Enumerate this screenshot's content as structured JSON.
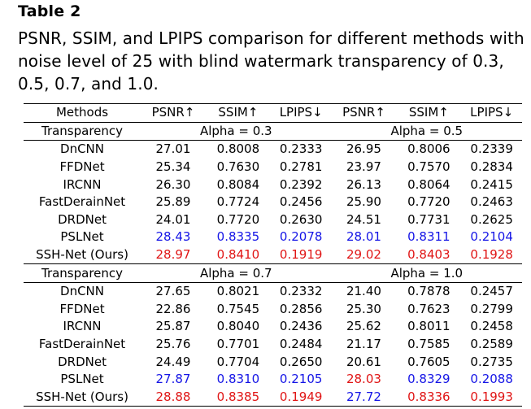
{
  "table_label": "Table 2",
  "caption": "PSNR, SSIM, and LPIPS comparison for different methods with noise level of 25 with blind watermark transparency of 0.3, 0.5, 0.7, and 1.0.",
  "colors": {
    "best": "#e01515",
    "second_best": "#1515e6"
  },
  "columns": [
    "Methods",
    "PSNR↑",
    "SSIM↑",
    "LPIPS↓",
    "PSNR↑",
    "SSIM↑",
    "LPIPS↓"
  ],
  "blocks": [
    {
      "row_label": "Transparency",
      "left_alpha": "Alpha = 0.3",
      "right_alpha": "Alpha = 0.5",
      "rows": [
        {
          "method": "DnCNN",
          "values": [
            "27.01",
            "0.8008",
            "0.2333",
            "26.95",
            "0.8006",
            "0.2339"
          ]
        },
        {
          "method": "FFDNet",
          "values": [
            "25.34",
            "0.7630",
            "0.2781",
            "23.97",
            "0.7570",
            "0.2834"
          ]
        },
        {
          "method": "IRCNN",
          "values": [
            "26.30",
            "0.8084",
            "0.2392",
            "26.13",
            "0.8064",
            "0.2415"
          ]
        },
        {
          "method": "FastDerainNet",
          "values": [
            "25.89",
            "0.7724",
            "0.2456",
            "25.90",
            "0.7720",
            "0.2463"
          ]
        },
        {
          "method": "DRDNet",
          "values": [
            "24.01",
            "0.7720",
            "0.2630",
            "24.51",
            "0.7731",
            "0.2625"
          ]
        },
        {
          "method": "PSLNet",
          "values": [
            "28.43",
            "0.8335",
            "0.2078",
            "28.01",
            "0.8311",
            "0.2104"
          ]
        },
        {
          "method": "SSH-Net (Ours)",
          "values": [
            "28.97",
            "0.8410",
            "0.1919",
            "29.02",
            "0.8403",
            "0.1928"
          ]
        }
      ]
    },
    {
      "row_label": "Transparency",
      "left_alpha": "Alpha = 0.7",
      "right_alpha": "Alpha = 1.0",
      "rows": [
        {
          "method": "DnCNN",
          "values": [
            "27.65",
            "0.8021",
            "0.2332",
            "21.40",
            "0.7878",
            "0.2457"
          ]
        },
        {
          "method": "FFDNet",
          "values": [
            "22.86",
            "0.7545",
            "0.2856",
            "25.30",
            "0.7623",
            "0.2799"
          ]
        },
        {
          "method": "IRCNN",
          "values": [
            "25.87",
            "0.8040",
            "0.2436",
            "25.62",
            "0.8011",
            "0.2458"
          ]
        },
        {
          "method": "FastDerainNet",
          "values": [
            "25.76",
            "0.7701",
            "0.2484",
            "21.17",
            "0.7585",
            "0.2589"
          ]
        },
        {
          "method": "DRDNet",
          "values": [
            "24.49",
            "0.7704",
            "0.2650",
            "20.61",
            "0.7605",
            "0.2735"
          ]
        },
        {
          "method": "PSLNet",
          "values": [
            "27.87",
            "0.8310",
            "0.2105",
            "28.03",
            "0.8329",
            "0.2088"
          ]
        },
        {
          "method": "SSH-Net (Ours)",
          "values": [
            "28.88",
            "0.8385",
            "0.1949",
            "27.72",
            "0.8336",
            "0.1993"
          ]
        }
      ]
    }
  ]
}
